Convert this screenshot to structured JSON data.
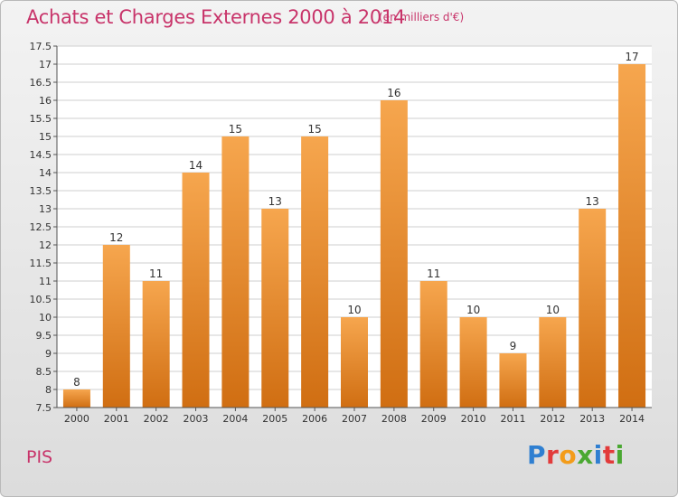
{
  "header": {
    "title": "Achats et Charges Externes 2000 à 2014",
    "subtitle": "(en milliers d'€)"
  },
  "place_name": "PIS",
  "brand": {
    "letters": [
      "P",
      "r",
      "o",
      "x",
      "i",
      "t",
      "i"
    ],
    "colors": [
      "#2f7fd1",
      "#e23b3b",
      "#f39c1a",
      "#4aa832",
      "#2f7fd1",
      "#e23b3b",
      "#4aa832"
    ]
  },
  "colors": {
    "bar_top": "#f6a64e",
    "bar_bottom": "#d06e12",
    "grid": "#cfcfcf",
    "accent": "#c8346a"
  },
  "chart_data": {
    "type": "bar",
    "title": "Achats et Charges Externes 2000 à 2014",
    "subtitle": "(en milliers d'€)",
    "xlabel": "",
    "ylabel": "",
    "categories": [
      "2000",
      "2001",
      "2002",
      "2003",
      "2004",
      "2005",
      "2006",
      "2007",
      "2008",
      "2009",
      "2010",
      "2011",
      "2012",
      "2013",
      "2014"
    ],
    "values": [
      8,
      12,
      11,
      14,
      15,
      13,
      15,
      10,
      16,
      11,
      10,
      9,
      10,
      13,
      17
    ],
    "ylim": [
      7.5,
      17.5
    ],
    "yticks": [
      "7.5",
      "8",
      "8.5",
      "9",
      "9.5",
      "10",
      "10.5",
      "11",
      "11.5",
      "12",
      "12.5",
      "13",
      "13.5",
      "14",
      "14.5",
      "15",
      "15.5",
      "16",
      "16.5",
      "17",
      "17.5"
    ],
    "grid": true,
    "data_labels": true
  }
}
